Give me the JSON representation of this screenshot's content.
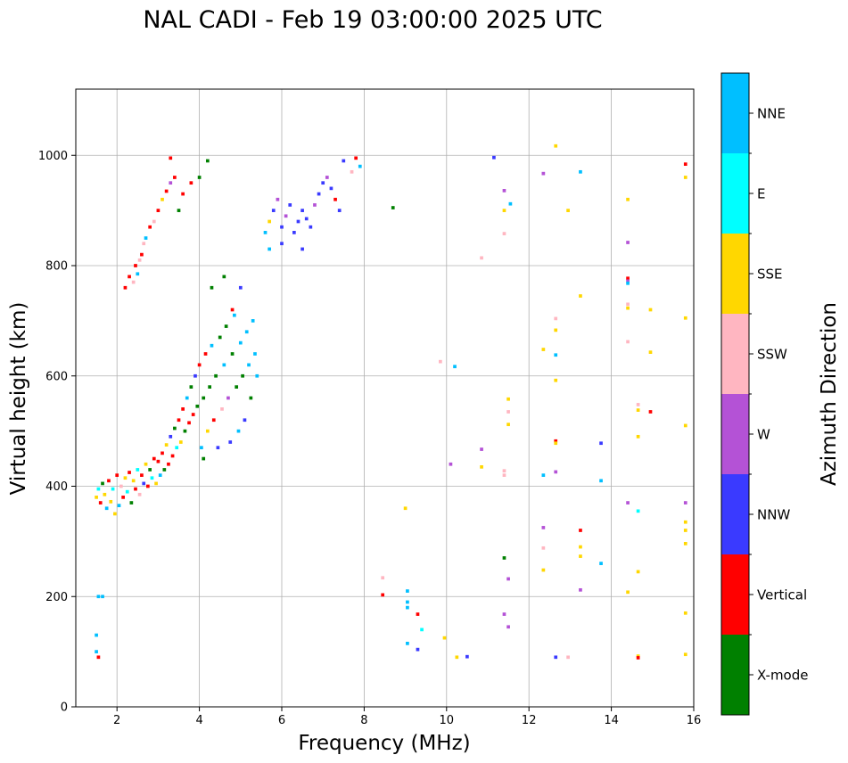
{
  "chart_data": {
    "type": "scatter",
    "title": "NAL CADI - Feb 19 03:00:00 2025 UTC",
    "xlabel": "Frequency (MHz)",
    "ylabel": "Virtual height (km)",
    "xlim": [
      1,
      16
    ],
    "ylim": [
      0,
      1120
    ],
    "xticks": [
      2,
      4,
      6,
      8,
      10,
      12,
      14,
      16
    ],
    "yticks": [
      0,
      200,
      400,
      600,
      800,
      1000
    ],
    "grid": true,
    "colorbar": {
      "label": "Azimuth Direction",
      "categories": [
        {
          "name": "X-mode",
          "color": "#008000"
        },
        {
          "name": "Vertical",
          "color": "#ff0000"
        },
        {
          "name": "NNW",
          "color": "#3a3aff"
        },
        {
          "name": "W",
          "color": "#b452d6"
        },
        {
          "name": "SSW",
          "color": "#ffb6c1"
        },
        {
          "name": "SSE",
          "color": "#ffd700"
        },
        {
          "name": "E",
          "color": "#00ffff"
        },
        {
          "name": "NNE",
          "color": "#00bfff"
        }
      ]
    },
    "mark_size": {
      "dx_mhz": 0.08,
      "dh_km": 6
    },
    "points": [
      [
        1.5,
        380,
        "SSE"
      ],
      [
        1.55,
        395,
        "E"
      ],
      [
        1.6,
        370,
        "Vertical"
      ],
      [
        1.65,
        405,
        "X-mode"
      ],
      [
        1.7,
        385,
        "SSE"
      ],
      [
        1.75,
        360,
        "NNE"
      ],
      [
        1.8,
        410,
        "Vertical"
      ],
      [
        1.85,
        372,
        "SSE"
      ],
      [
        1.9,
        395,
        "E"
      ],
      [
        1.95,
        350,
        "SSE"
      ],
      [
        2.0,
        420,
        "Vertical"
      ],
      [
        2.05,
        365,
        "NNE"
      ],
      [
        2.1,
        400,
        "SSW"
      ],
      [
        2.15,
        380,
        "Vertical"
      ],
      [
        2.2,
        415,
        "SSE"
      ],
      [
        2.25,
        390,
        "E"
      ],
      [
        2.3,
        425,
        "Vertical"
      ],
      [
        2.35,
        370,
        "X-mode"
      ],
      [
        2.4,
        410,
        "SSE"
      ],
      [
        2.45,
        395,
        "Vertical"
      ],
      [
        2.5,
        430,
        "E"
      ],
      [
        2.55,
        385,
        "SSW"
      ],
      [
        2.6,
        420,
        "Vertical"
      ],
      [
        2.65,
        405,
        "NNW"
      ],
      [
        2.7,
        440,
        "SSE"
      ],
      [
        2.75,
        400,
        "Vertical"
      ],
      [
        2.8,
        430,
        "X-mode"
      ],
      [
        2.85,
        415,
        "E"
      ],
      [
        2.9,
        450,
        "Vertical"
      ],
      [
        2.95,
        405,
        "SSE"
      ],
      [
        3.0,
        445,
        "Vertical"
      ],
      [
        3.05,
        420,
        "NNE"
      ],
      [
        3.1,
        460,
        "Vertical"
      ],
      [
        3.15,
        430,
        "X-mode"
      ],
      [
        3.2,
        475,
        "SSE"
      ],
      [
        3.25,
        440,
        "Vertical"
      ],
      [
        3.3,
        490,
        "NNW"
      ],
      [
        3.35,
        455,
        "Vertical"
      ],
      [
        3.4,
        505,
        "X-mode"
      ],
      [
        3.45,
        470,
        "E"
      ],
      [
        3.5,
        520,
        "Vertical"
      ],
      [
        3.55,
        480,
        "SSE"
      ],
      [
        3.6,
        540,
        "Vertical"
      ],
      [
        3.65,
        500,
        "X-mode"
      ],
      [
        3.7,
        560,
        "NNE"
      ],
      [
        3.75,
        515,
        "Vertical"
      ],
      [
        3.8,
        580,
        "X-mode"
      ],
      [
        3.85,
        530,
        "Vertical"
      ],
      [
        3.9,
        600,
        "NNW"
      ],
      [
        3.95,
        545,
        "X-mode"
      ],
      [
        4.0,
        620,
        "Vertical"
      ],
      [
        4.05,
        470,
        "NNE"
      ],
      [
        4.1,
        560,
        "X-mode"
      ],
      [
        4.15,
        640,
        "Vertical"
      ],
      [
        4.2,
        500,
        "SSE"
      ],
      [
        4.25,
        580,
        "X-mode"
      ],
      [
        4.3,
        655,
        "NNE"
      ],
      [
        4.35,
        520,
        "Vertical"
      ],
      [
        4.4,
        600,
        "X-mode"
      ],
      [
        4.45,
        470,
        "NNW"
      ],
      [
        4.5,
        670,
        "X-mode"
      ],
      [
        4.55,
        540,
        "SSW"
      ],
      [
        4.6,
        620,
        "NNE"
      ],
      [
        4.65,
        690,
        "X-mode"
      ],
      [
        4.7,
        560,
        "W"
      ],
      [
        4.75,
        480,
        "NNW"
      ],
      [
        4.8,
        640,
        "X-mode"
      ],
      [
        4.85,
        710,
        "NNE"
      ],
      [
        4.9,
        580,
        "X-mode"
      ],
      [
        4.95,
        500,
        "NNE"
      ],
      [
        5.0,
        660,
        "NNE"
      ],
      [
        5.05,
        600,
        "X-mode"
      ],
      [
        5.1,
        520,
        "NNW"
      ],
      [
        5.15,
        680,
        "NNE"
      ],
      [
        5.2,
        620,
        "NNE"
      ],
      [
        5.25,
        560,
        "X-mode"
      ],
      [
        5.3,
        700,
        "NNE"
      ],
      [
        5.35,
        640,
        "NNE"
      ],
      [
        4.1,
        450,
        "X-mode"
      ],
      [
        4.3,
        760,
        "X-mode"
      ],
      [
        4.6,
        780,
        "X-mode"
      ],
      [
        4.8,
        720,
        "Vertical"
      ],
      [
        5.0,
        760,
        "NNW"
      ],
      [
        5.4,
        600,
        "NNE"
      ],
      [
        2.2,
        760,
        "Vertical"
      ],
      [
        2.3,
        780,
        "Vertical"
      ],
      [
        2.4,
        770,
        "SSW"
      ],
      [
        2.45,
        800,
        "Vertical"
      ],
      [
        2.5,
        785,
        "NNE"
      ],
      [
        2.55,
        810,
        "SSW"
      ],
      [
        2.6,
        820,
        "Vertical"
      ],
      [
        2.65,
        840,
        "SSW"
      ],
      [
        2.7,
        850,
        "NNE"
      ],
      [
        2.8,
        870,
        "Vertical"
      ],
      [
        2.9,
        880,
        "SSW"
      ],
      [
        3.0,
        900,
        "Vertical"
      ],
      [
        3.1,
        920,
        "SSE"
      ],
      [
        3.2,
        935,
        "Vertical"
      ],
      [
        3.3,
        950,
        "W"
      ],
      [
        3.4,
        960,
        "Vertical"
      ],
      [
        3.5,
        900,
        "X-mode"
      ],
      [
        3.6,
        930,
        "Vertical"
      ],
      [
        3.8,
        950,
        "Vertical"
      ],
      [
        4.0,
        960,
        "X-mode"
      ],
      [
        4.2,
        990,
        "X-mode"
      ],
      [
        3.3,
        995,
        "Vertical"
      ],
      [
        5.6,
        860,
        "NNE"
      ],
      [
        5.7,
        880,
        "SSE"
      ],
      [
        5.8,
        900,
        "NNW"
      ],
      [
        5.9,
        920,
        "W"
      ],
      [
        6.0,
        870,
        "NNW"
      ],
      [
        6.1,
        890,
        "W"
      ],
      [
        6.2,
        910,
        "NNW"
      ],
      [
        6.3,
        860,
        "NNW"
      ],
      [
        6.4,
        880,
        "NNW"
      ],
      [
        6.5,
        900,
        "NNW"
      ],
      [
        6.6,
        885,
        "NNW"
      ],
      [
        6.7,
        870,
        "NNW"
      ],
      [
        6.8,
        910,
        "W"
      ],
      [
        6.9,
        930,
        "NNW"
      ],
      [
        7.0,
        950,
        "NNW"
      ],
      [
        7.1,
        960,
        "W"
      ],
      [
        7.2,
        940,
        "NNW"
      ],
      [
        7.3,
        920,
        "Vertical"
      ],
      [
        7.4,
        900,
        "NNW"
      ],
      [
        7.5,
        990,
        "NNW"
      ],
      [
        7.7,
        970,
        "SSW"
      ],
      [
        7.8,
        995,
        "Vertical"
      ],
      [
        7.9,
        980,
        "NNE"
      ],
      [
        8.7,
        905,
        "X-mode"
      ],
      [
        6.0,
        840,
        "NNW"
      ],
      [
        6.5,
        830,
        "NNW"
      ],
      [
        5.7,
        830,
        "NNE"
      ],
      [
        1.55,
        200,
        "NNE"
      ],
      [
        1.65,
        200,
        "NNE"
      ],
      [
        1.5,
        130,
        "NNE"
      ],
      [
        1.5,
        100,
        "NNE"
      ],
      [
        1.55,
        90,
        "Vertical"
      ],
      [
        8.45,
        234,
        "SSW"
      ],
      [
        8.45,
        203,
        "Vertical"
      ],
      [
        9.05,
        210,
        "NNE"
      ],
      [
        9.05,
        190,
        "NNE"
      ],
      [
        9.05,
        180,
        "NNE"
      ],
      [
        9.05,
        115,
        "NNE"
      ],
      [
        9.3,
        168,
        "Vertical"
      ],
      [
        9.3,
        104,
        "NNW"
      ],
      [
        9.4,
        140,
        "E"
      ],
      [
        9.85,
        626,
        "SSW"
      ],
      [
        9.95,
        125,
        "SSE"
      ],
      [
        10.1,
        440,
        "W"
      ],
      [
        10.2,
        617,
        "NNE"
      ],
      [
        10.25,
        90,
        "SSE"
      ],
      [
        10.5,
        91,
        "NNW"
      ],
      [
        10.85,
        814,
        "SSW"
      ],
      [
        10.85,
        435,
        "SSE"
      ],
      [
        10.85,
        467,
        "W"
      ],
      [
        11.15,
        996,
        "NNW"
      ],
      [
        11.4,
        936,
        "W"
      ],
      [
        11.4,
        900,
        "SSE"
      ],
      [
        11.4,
        858,
        "SSW"
      ],
      [
        11.4,
        420,
        "SSW"
      ],
      [
        11.4,
        428,
        "SSW"
      ],
      [
        11.4,
        270,
        "X-mode"
      ],
      [
        11.55,
        912,
        "NNE"
      ],
      [
        11.5,
        558,
        "SSE"
      ],
      [
        11.5,
        535,
        "SSW"
      ],
      [
        11.5,
        512,
        "SSE"
      ],
      [
        11.5,
        232,
        "W"
      ],
      [
        11.4,
        168,
        "W"
      ],
      [
        11.5,
        145,
        "W"
      ],
      [
        12.35,
        967,
        "W"
      ],
      [
        12.35,
        648,
        "SSE"
      ],
      [
        12.35,
        420,
        "NNE"
      ],
      [
        12.35,
        325,
        "W"
      ],
      [
        12.35,
        288,
        "SSW"
      ],
      [
        12.35,
        248,
        "SSE"
      ],
      [
        12.65,
        1017,
        "SSE"
      ],
      [
        12.65,
        704,
        "SSW"
      ],
      [
        12.65,
        683,
        "SSE"
      ],
      [
        12.65,
        638,
        "NNE"
      ],
      [
        12.65,
        592,
        "SSE"
      ],
      [
        12.65,
        482,
        "Vertical"
      ],
      [
        12.65,
        478,
        "SSE"
      ],
      [
        12.65,
        426,
        "W"
      ],
      [
        12.65,
        90,
        "NNW"
      ],
      [
        12.95,
        900,
        "SSE"
      ],
      [
        12.95,
        90,
        "SSW"
      ],
      [
        13.25,
        970,
        "NNE"
      ],
      [
        13.25,
        745,
        "SSE"
      ],
      [
        13.25,
        320,
        "Vertical"
      ],
      [
        13.25,
        290,
        "SSE"
      ],
      [
        13.25,
        273,
        "SSE"
      ],
      [
        13.25,
        212,
        "W"
      ],
      [
        13.75,
        478,
        "NNW"
      ],
      [
        13.75,
        410,
        "NNE"
      ],
      [
        13.75,
        260,
        "NNE"
      ],
      [
        14.4,
        920,
        "SSE"
      ],
      [
        14.4,
        842,
        "W"
      ],
      [
        14.4,
        777,
        "Vertical"
      ],
      [
        14.4,
        772,
        "W"
      ],
      [
        14.4,
        768,
        "NNE"
      ],
      [
        14.4,
        730,
        "SSW"
      ],
      [
        14.4,
        723,
        "SSE"
      ],
      [
        14.4,
        662,
        "SSW"
      ],
      [
        14.4,
        370,
        "W"
      ],
      [
        14.4,
        208,
        "SSE"
      ],
      [
        14.65,
        548,
        "SSW"
      ],
      [
        14.65,
        538,
        "SSE"
      ],
      [
        14.65,
        490,
        "SSE"
      ],
      [
        14.65,
        355,
        "E"
      ],
      [
        14.65,
        245,
        "SSE"
      ],
      [
        14.65,
        92,
        "SSE"
      ],
      [
        14.65,
        89,
        "Vertical"
      ],
      [
        14.95,
        720,
        "SSE"
      ],
      [
        14.95,
        643,
        "SSE"
      ],
      [
        14.95,
        535,
        "Vertical"
      ],
      [
        15.8,
        984,
        "Vertical"
      ],
      [
        15.8,
        960,
        "SSE"
      ],
      [
        15.8,
        705,
        "SSE"
      ],
      [
        15.8,
        510,
        "SSE"
      ],
      [
        15.8,
        370,
        "W"
      ],
      [
        15.8,
        335,
        "SSE"
      ],
      [
        15.8,
        320,
        "SSE"
      ],
      [
        15.8,
        296,
        "SSE"
      ],
      [
        15.8,
        170,
        "SSE"
      ],
      [
        15.8,
        95,
        "SSE"
      ],
      [
        9.0,
        360,
        "SSE"
      ]
    ]
  }
}
